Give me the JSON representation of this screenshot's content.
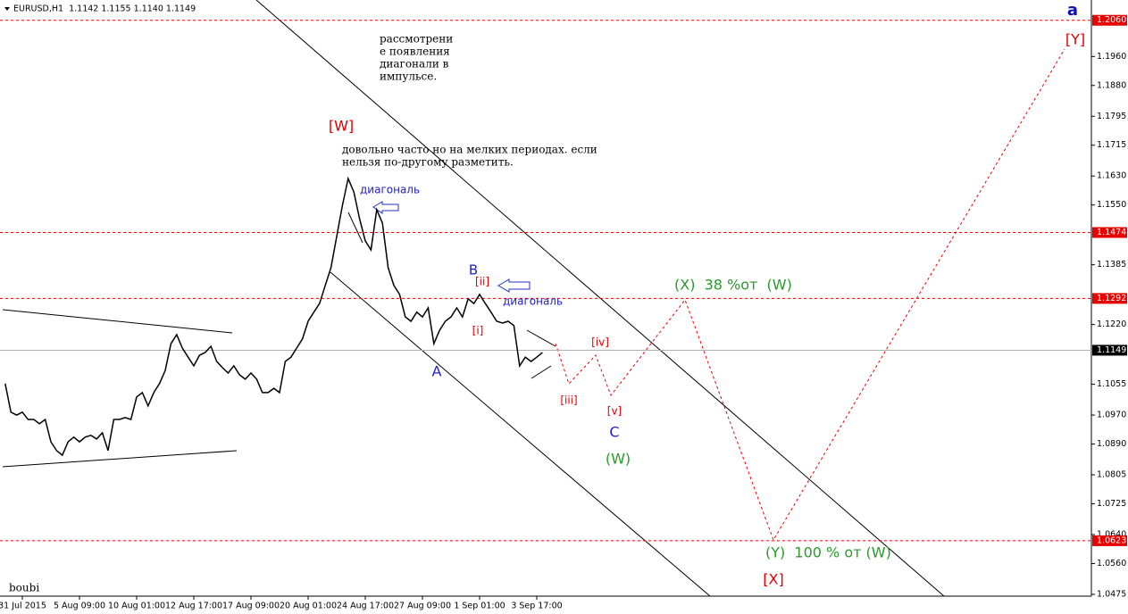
{
  "chart_data": {
    "type": "line",
    "header": "EURUSD,H1  1.1142 1.1155 1.1140 1.1149",
    "color": "#000000",
    "values": [
      1.1057,
      1.0978,
      1.097,
      1.0978,
      1.0958,
      1.0958,
      1.0946,
      1.0958,
      1.0896,
      1.0872,
      1.0859,
      1.0896,
      1.0909,
      1.0896,
      1.0909,
      1.0914,
      1.0904,
      1.0921,
      1.0872,
      1.0958,
      1.0958,
      1.0963,
      1.0958,
      1.102,
      1.1032,
      1.0995,
      1.1032,
      1.1057,
      1.1093,
      1.1167,
      1.1192,
      1.1155,
      1.113,
      1.1106,
      1.1135,
      1.1143,
      1.116,
      1.1118,
      1.1101,
      1.1086,
      1.1106,
      1.1081,
      1.1069,
      1.1086,
      1.1069,
      1.1032,
      1.1032,
      1.1044,
      1.1032,
      1.1118,
      1.113,
      1.1155,
      1.118,
      1.1229,
      1.1254,
      1.1278,
      1.1328,
      1.1377,
      1.1463,
      1.1549,
      1.1623,
      1.1586,
      1.1512,
      1.1451,
      1.1426,
      1.1537,
      1.15,
      1.1377,
      1.1328,
      1.1303,
      1.1241,
      1.1229,
      1.1254,
      1.1241,
      1.1266,
      1.1167,
      1.1204,
      1.1229,
      1.1241,
      1.1266,
      1.1241,
      1.1291,
      1.1278,
      1.1303,
      1.1278,
      1.1254,
      1.1229,
      1.1224,
      1.1229,
      1.1217,
      1.1106,
      1.113,
      1.1118,
      1.113,
      1.1143
    ],
    "ylim": [
      1.047,
      1.2116
    ],
    "yticks": [
      {
        "value": 1.196,
        "label": "1.1960"
      },
      {
        "value": 1.188,
        "label": "1.1880"
      },
      {
        "value": 1.1795,
        "label": "1.1795"
      },
      {
        "value": 1.1715,
        "label": "1.1715"
      },
      {
        "value": 1.163,
        "label": "1.1630"
      },
      {
        "value": 1.155,
        "label": "1.1550"
      },
      {
        "value": 1.1385,
        "label": "1.1385"
      },
      {
        "value": 1.122,
        "label": "1.1220"
      },
      {
        "value": 1.1055,
        "label": "1.1055"
      },
      {
        "value": 1.097,
        "label": "1.0970"
      },
      {
        "value": 1.089,
        "label": "1.0890"
      },
      {
        "value": 1.0805,
        "label": "1.0805"
      },
      {
        "value": 1.0725,
        "label": "1.0725"
      },
      {
        "value": 1.064,
        "label": "1.0640"
      },
      {
        "value": 1.056,
        "label": "1.0560"
      },
      {
        "value": 1.0475,
        "label": "1.0475"
      }
    ],
    "xticks": [
      {
        "value": 3,
        "label": "31 Jul 2015"
      },
      {
        "value": 13,
        "label": "5 Aug 09:00"
      },
      {
        "value": 23,
        "label": "10 Aug 01:00"
      },
      {
        "value": 33,
        "label": "12 Aug 17:00"
      },
      {
        "value": 43,
        "label": "17 Aug 09:00"
      },
      {
        "value": 53,
        "label": "20 Aug 01:00"
      },
      {
        "value": 63,
        "label": "24 Aug 17:00"
      },
      {
        "value": 73,
        "label": "27 Aug 09:00"
      },
      {
        "value": 83,
        "label": "1 Sep 01:00"
      },
      {
        "value": 93,
        "label": "3 Sep 17:00"
      }
    ],
    "levels": [
      {
        "value": 1.206,
        "label": "1.2060"
      },
      {
        "value": 1.1474,
        "label": "1.1474"
      },
      {
        "value": 1.1292,
        "label": "1.1292"
      },
      {
        "value": 1.0623,
        "label": "1.0623"
      }
    ],
    "level_color": "#e60000",
    "current_price": 1.1149,
    "annotations": [
      {
        "text": "[W]",
        "color": "#e00000"
      },
      {
        "text": "довольно часто но на мелких периодах. если",
        "color": "#000000"
      },
      {
        "text": "нельзя по-другому разметить.",
        "color": "#000000"
      },
      {
        "text": "рассмотрени",
        "color": "#000000"
      },
      {
        "text": "е появления",
        "color": "#000000"
      },
      {
        "text": "диагонали в",
        "color": "#000000"
      },
      {
        "text": "импульсе.",
        "color": "#000000"
      },
      {
        "text": "диагональ",
        "color": "#2020c0"
      },
      {
        "text": "B",
        "color": "#2020c0"
      },
      {
        "text": "[ii]",
        "color": "#e00000"
      },
      {
        "text": "диагональ",
        "color": "#2020c0"
      },
      {
        "text": "[i]",
        "color": "#e00000"
      },
      {
        "text": "A",
        "color": "#2020c0"
      },
      {
        "text": "[iii]",
        "color": "#e00000"
      },
      {
        "text": "[iv]",
        "color": "#e00000"
      },
      {
        "text": "[v]",
        "color": "#e00000"
      },
      {
        "text": "C",
        "color": "#2020c0"
      },
      {
        "text": "(W)",
        "color": "#2a9a2a"
      },
      {
        "text": "(X)  38 %от  (W)",
        "color": "#2a9a2a"
      },
      {
        "text": "[Y]",
        "color": "#e00000"
      },
      {
        "text": "(Y)  100 % от (W)",
        "color": "#2a9a2a"
      },
      {
        "text": "[X]",
        "color": "#e00000"
      },
      {
        "text": "a",
        "color": "#1010b0"
      },
      {
        "text": "boubi",
        "color": "#000000"
      }
    ]
  }
}
